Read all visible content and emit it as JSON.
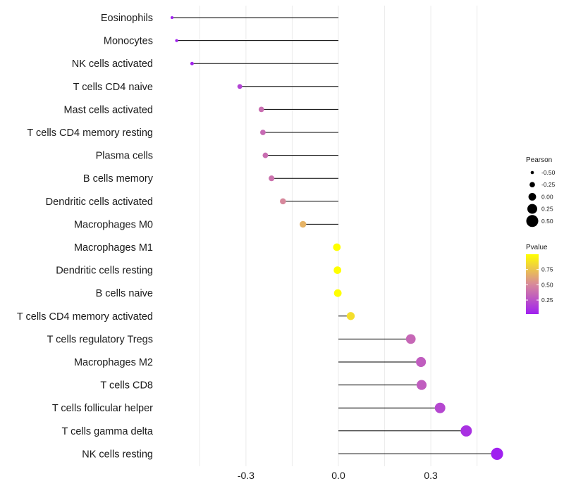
{
  "chart_data": {
    "type": "lollipop",
    "xlabel": "",
    "ylabel": "",
    "xlim": [
      -0.545,
      0.545
    ],
    "x_ticks": [
      -0.3,
      0.0,
      0.3
    ],
    "x_tick_labels": [
      "-0.3",
      "0.0",
      "0.3"
    ],
    "grid": true,
    "series": [
      {
        "name": "Eosinophils",
        "pearson": -0.54,
        "pvalue": 0.02
      },
      {
        "name": "Monocytes",
        "pearson": -0.525,
        "pvalue": 0.03
      },
      {
        "name": "NK cells activated",
        "pearson": -0.475,
        "pvalue": 0.04
      },
      {
        "name": "T cells CD4 naive",
        "pearson": -0.32,
        "pvalue": 0.18
      },
      {
        "name": "Mast cells activated",
        "pearson": -0.25,
        "pvalue": 0.38
      },
      {
        "name": "T cells CD4 memory resting",
        "pearson": -0.245,
        "pvalue": 0.36
      },
      {
        "name": "Plasma cells",
        "pearson": -0.237,
        "pvalue": 0.38
      },
      {
        "name": "B cells memory",
        "pearson": -0.217,
        "pvalue": 0.4
      },
      {
        "name": "Dendritic cells activated",
        "pearson": -0.18,
        "pvalue": 0.5
      },
      {
        "name": "Macrophages M0",
        "pearson": -0.115,
        "pvalue": 0.68
      },
      {
        "name": "Macrophages M1",
        "pearson": -0.005,
        "pvalue": 1.0
      },
      {
        "name": "Dendritic cells resting",
        "pearson": -0.003,
        "pvalue": 1.0
      },
      {
        "name": "B cells naive",
        "pearson": -0.002,
        "pvalue": 1.0
      },
      {
        "name": "T cells CD4 memory activated",
        "pearson": 0.04,
        "pvalue": 0.86
      },
      {
        "name": "T cells regulatory  Tregs ",
        "pearson": 0.235,
        "pvalue": 0.35
      },
      {
        "name": "Macrophages M2",
        "pearson": 0.268,
        "pvalue": 0.3
      },
      {
        "name": "T cells CD8",
        "pearson": 0.27,
        "pvalue": 0.3
      },
      {
        "name": "T cells follicular helper",
        "pearson": 0.33,
        "pvalue": 0.2
      },
      {
        "name": "T cells gamma delta",
        "pearson": 0.415,
        "pvalue": 0.1
      },
      {
        "name": "NK cells resting",
        "pearson": 0.515,
        "pvalue": 0.02
      }
    ],
    "legend": {
      "size_title": "Pearson",
      "size_entries": [
        {
          "label": "-0.50",
          "value": -0.5
        },
        {
          "label": "-0.25",
          "value": -0.25
        },
        {
          "label": "0.00",
          "value": 0.0
        },
        {
          "label": "0.25",
          "value": 0.25
        },
        {
          "label": "0.50",
          "value": 0.5
        }
      ],
      "color_title": "Pvalue",
      "color_range": [
        0.02,
        1.0
      ],
      "color_ticks": [
        {
          "label": "0.75",
          "value": 0.75
        },
        {
          "label": "0.50",
          "value": 0.5
        },
        {
          "label": "0.25",
          "value": 0.25
        }
      ],
      "placement": "right"
    }
  },
  "colors": {
    "low_pvalue": "#a020f0",
    "mid_pvalue": "#d88a9a",
    "high_pvalue": "#ffff00",
    "stem": "#000000",
    "grid": "#ebebeb"
  }
}
